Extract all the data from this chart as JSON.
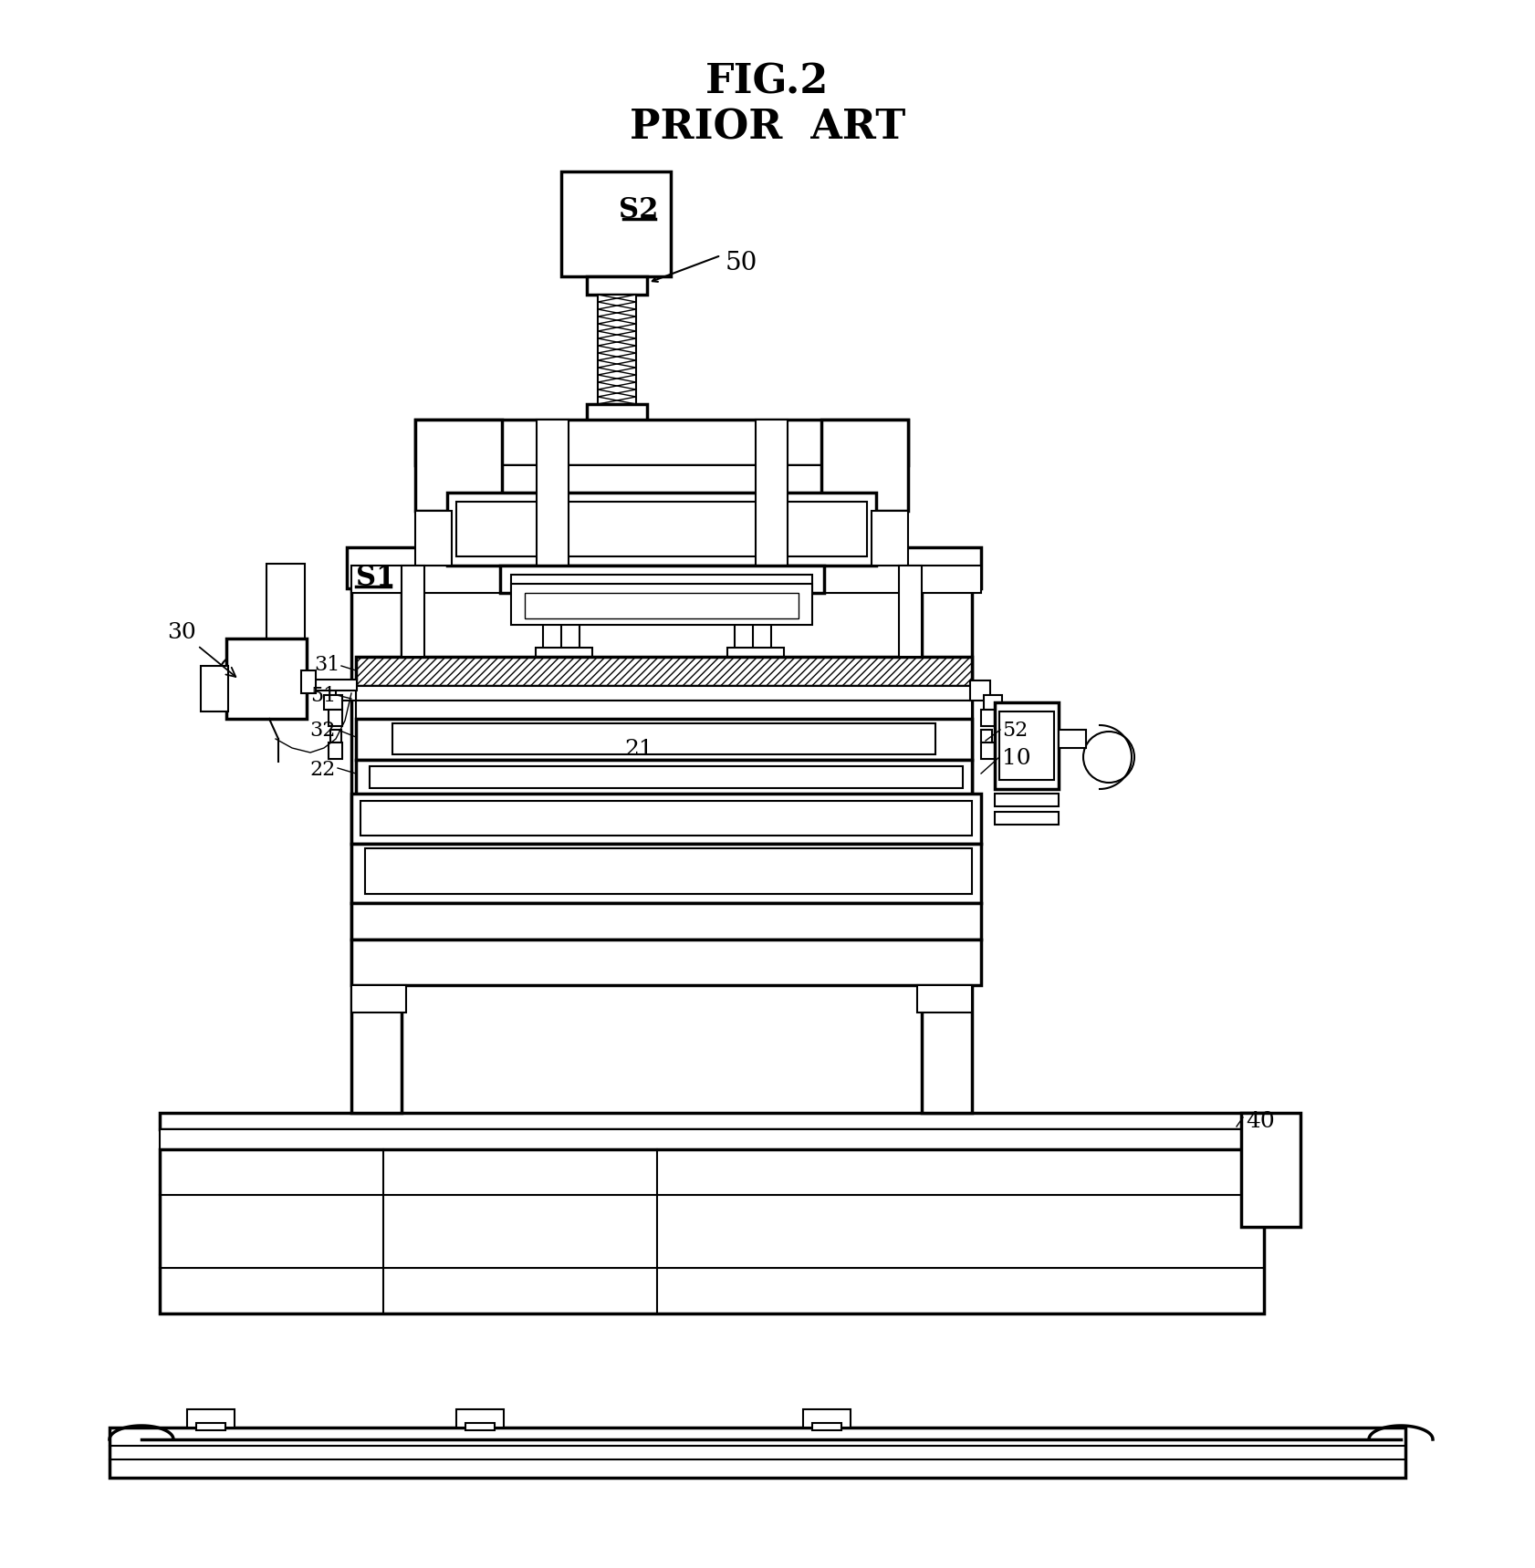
{
  "title1": "FIG.2",
  "title2": "PRIOR  ART",
  "bg": "#ffffff",
  "lc": "#000000"
}
